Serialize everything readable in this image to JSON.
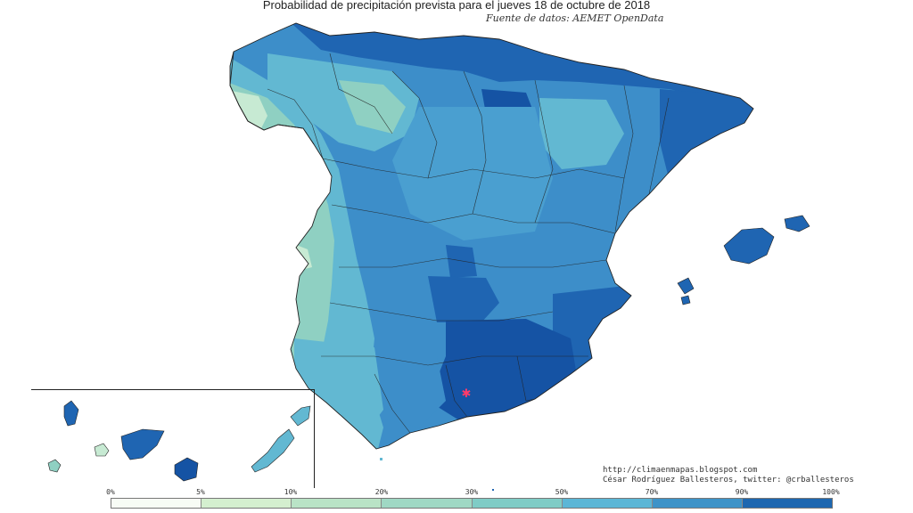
{
  "title": "Probabilidad de precipitación prevista para el jueves 18 de octubre de 2018",
  "subtitle": "Fuente de datos: AEMET OpenData",
  "credits": {
    "url": "http://climaenmapas.blogspot.com",
    "author": "César Rodríguez Ballesteros, twitter: @crballesteros"
  },
  "legend": {
    "labels": [
      "0%",
      "5%",
      "10%",
      "20%",
      "30%",
      "50%",
      "70%",
      "90%",
      "100%"
    ],
    "colors": [
      "#f7fcf5",
      "#d4efcf",
      "#b9e3c6",
      "#9fd8c4",
      "#7fccc6",
      "#5bb6d6",
      "#3d93c8",
      "#1d67b0"
    ]
  },
  "map_colors": {
    "very_low": "#c7ead3",
    "low": "#8fd0c2",
    "medium_low": "#62b8d2",
    "medium": "#4a9fd0",
    "medium_high": "#3583c2",
    "high": "#1f65b2",
    "very_high": "#1553a4",
    "marker": "#ff3b6b"
  }
}
